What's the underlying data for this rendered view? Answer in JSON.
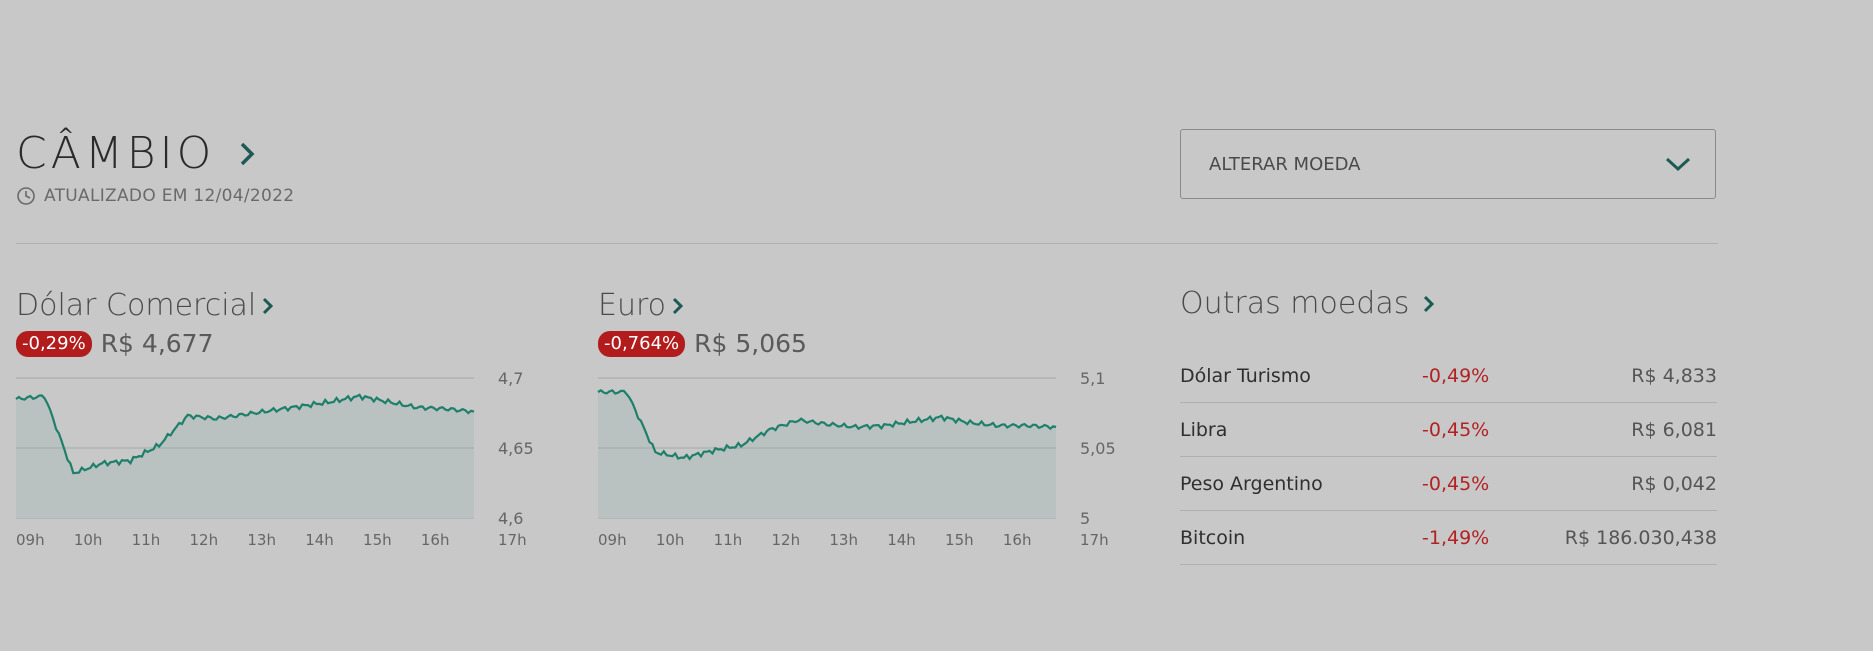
{
  "header": {
    "title": "CÂMBIO",
    "updated": "ATUALIZADO EM 12/04/2022"
  },
  "currency_select": {
    "label": "ALTERAR MOEDA"
  },
  "dolar": {
    "title": "Dólar Comercial",
    "change": "-0,29%",
    "price": "R$ 4,677",
    "y_ticks": [
      "4,7",
      "4,65",
      "4,6"
    ],
    "x_ticks": [
      "09h",
      "10h",
      "11h",
      "12h",
      "13h",
      "14h",
      "15h",
      "16h",
      "17h"
    ]
  },
  "euro": {
    "title": "Euro",
    "change": "-0,764%",
    "price": "R$ 5,065",
    "y_ticks": [
      "5,1",
      "5,05",
      "5"
    ],
    "x_ticks": [
      "09h",
      "10h",
      "11h",
      "12h",
      "13h",
      "14h",
      "15h",
      "16h",
      "17h"
    ]
  },
  "outras": {
    "title": "Outras moedas",
    "rows": [
      {
        "name": "Dólar Turismo",
        "change": "-0,49%",
        "value": "R$ 4,833"
      },
      {
        "name": "Libra",
        "change": "-0,45%",
        "value": "R$ 6,081"
      },
      {
        "name": "Peso Argentino",
        "change": "-0,45%",
        "value": "R$ 0,042"
      },
      {
        "name": "Bitcoin",
        "change": "-1,49%",
        "value": "R$ 186.030,438"
      }
    ]
  },
  "colors": {
    "line": "#1e7f6a",
    "fill": "#b6c1be",
    "badge": "#b21c1c",
    "negative": "#b22222"
  },
  "chart_data": [
    {
      "type": "area",
      "title": "",
      "xlabel": "",
      "ylabel": "",
      "x": [
        "09h",
        "09h30",
        "10h",
        "10h30",
        "11h",
        "11h30",
        "12h",
        "12h30",
        "13h",
        "13h30",
        "14h",
        "14h30",
        "15h",
        "15h30",
        "16h",
        "16h30",
        "17h"
      ],
      "series": [
        {
          "values": [
            4.685,
            4.687,
            4.632,
            4.639,
            4.641,
            4.652,
            4.673,
            4.671,
            4.674,
            4.677,
            4.68,
            4.683,
            4.687,
            4.683,
            4.679,
            4.678,
            4.676
          ]
        }
      ],
      "ylim": [
        4.6,
        4.7
      ],
      "grid": true
    },
    {
      "type": "area",
      "title": "",
      "xlabel": "",
      "ylabel": "",
      "x": [
        "09h",
        "09h30",
        "10h",
        "10h30",
        "11h",
        "11h30",
        "12h",
        "12h30",
        "13h",
        "13h30",
        "14h",
        "14h30",
        "15h",
        "15h30",
        "16h",
        "16h30",
        "17h"
      ],
      "series": [
        {
          "values": [
            5.09,
            5.09,
            5.047,
            5.043,
            5.048,
            5.052,
            5.063,
            5.07,
            5.067,
            5.065,
            5.066,
            5.069,
            5.072,
            5.068,
            5.066,
            5.066,
            5.065
          ]
        }
      ],
      "ylim": [
        5.0,
        5.1
      ],
      "grid": true
    }
  ]
}
